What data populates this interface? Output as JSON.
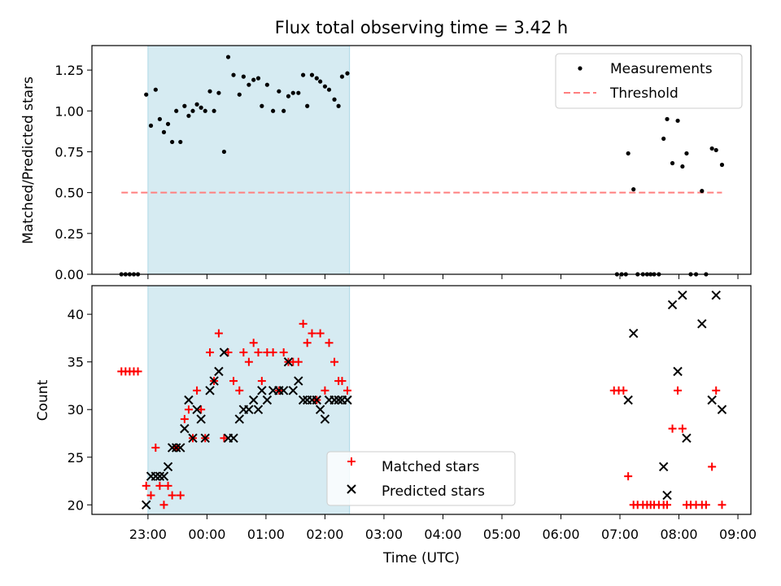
{
  "title": "Flux total observing time = 3.42 h",
  "colors": {
    "band": "#add8e6",
    "matched": "#ff0000",
    "predicted": "#000000",
    "threshold": "#ff7f7f",
    "measurements": "#000000"
  },
  "chart_data": [
    {
      "type": "scatter",
      "panel": "top",
      "ylabel": "Matched/Predicted stars",
      "ylim": [
        0,
        1.4
      ],
      "yticks": [
        0.0,
        0.25,
        0.5,
        0.75,
        1.0,
        1.25
      ],
      "ytick_labels": [
        "0.00",
        "0.25",
        "0.50",
        "0.75",
        "1.00",
        "1.25"
      ],
      "x_unit": "hours relative to 00:00 UTC",
      "xlim": [
        -1.95,
        9.22
      ],
      "xticks": [
        -1,
        0,
        1,
        2,
        3,
        4,
        5,
        6,
        7,
        8,
        9
      ],
      "shaded_interval": [
        "23:00",
        "02:25"
      ],
      "legend": {
        "position": "top-right",
        "entries": [
          "Measurements",
          "Threshold"
        ]
      },
      "threshold": {
        "name": "Threshold",
        "value": 0.5,
        "x_range": [
          -1.45,
          8.73
        ],
        "style": "dashed"
      },
      "series": [
        {
          "name": "Measurements",
          "x": [
            -1.45,
            -1.38,
            -1.31,
            -1.24,
            -1.17,
            -1.03,
            -0.95,
            -0.87,
            -0.8,
            -0.73,
            -0.66,
            -0.59,
            -0.52,
            -0.45,
            -0.38,
            -0.31,
            -0.24,
            -0.17,
            -0.1,
            -0.03,
            0.05,
            0.12,
            0.2,
            0.29,
            0.36,
            0.45,
            0.55,
            0.62,
            0.71,
            0.79,
            0.87,
            0.93,
            1.02,
            1.12,
            1.22,
            1.3,
            1.38,
            1.46,
            1.55,
            1.63,
            1.7,
            1.78,
            1.86,
            1.92,
            2.0,
            2.07,
            2.16,
            2.23,
            2.29,
            2.38,
            6.95,
            7.03,
            7.1,
            7.14,
            7.23,
            7.3,
            7.39,
            7.46,
            7.52,
            7.58,
            7.66,
            7.74,
            7.8,
            7.89,
            7.98,
            8.06,
            8.13,
            8.2,
            8.29,
            8.39,
            8.46,
            8.56,
            8.63,
            8.73
          ],
          "y": [
            0,
            0,
            0,
            0,
            0,
            1.1,
            0.91,
            1.13,
            0.95,
            0.87,
            0.92,
            0.81,
            1.0,
            0.81,
            1.03,
            0.97,
            1.0,
            1.04,
            1.02,
            1.0,
            1.12,
            1.0,
            1.11,
            0.75,
            1.33,
            1.22,
            1.1,
            1.21,
            1.16,
            1.19,
            1.2,
            1.03,
            1.16,
            1.0,
            1.12,
            1.0,
            1.09,
            1.11,
            1.11,
            1.22,
            1.03,
            1.22,
            1.2,
            1.18,
            1.15,
            1.13,
            1.07,
            1.03,
            1.21,
            1.23,
            0,
            0,
            0,
            0.74,
            0.52,
            0,
            0,
            0,
            0,
            0,
            0,
            0.83,
            0.95,
            0.68,
            0.94,
            0.66,
            0.74,
            0,
            0,
            0.51,
            0,
            0.77,
            0.76,
            0.67
          ]
        }
      ]
    },
    {
      "type": "scatter",
      "panel": "bottom",
      "xlabel": "Time (UTC)",
      "ylabel": "Count",
      "ylim": [
        19,
        43
      ],
      "yticks": [
        20,
        25,
        30,
        35,
        40
      ],
      "ytick_labels": [
        "20",
        "25",
        "30",
        "35",
        "40"
      ],
      "xticks": [
        -1,
        0,
        1,
        2,
        3,
        4,
        5,
        6,
        7,
        8,
        9
      ],
      "xtick_labels": [
        "23:00",
        "00:00",
        "01:00",
        "02:00",
        "03:00",
        "04:00",
        "05:00",
        "06:00",
        "07:00",
        "08:00",
        "09:00"
      ],
      "legend": {
        "position": "bottom-center",
        "entries": [
          "Matched stars",
          "Predicted stars"
        ]
      },
      "series": [
        {
          "name": "Matched stars",
          "marker": "plus",
          "x": [
            -1.45,
            -1.38,
            -1.31,
            -1.24,
            -1.17,
            -1.03,
            -0.95,
            -0.87,
            -0.8,
            -0.73,
            -0.66,
            -0.59,
            -0.52,
            -0.45,
            -0.38,
            -0.31,
            -0.24,
            -0.17,
            -0.1,
            -0.03,
            0.05,
            0.12,
            0.2,
            0.29,
            0.36,
            0.45,
            0.55,
            0.62,
            0.71,
            0.79,
            0.87,
            0.93,
            1.02,
            1.12,
            1.22,
            1.3,
            1.38,
            1.46,
            1.55,
            1.63,
            1.7,
            1.78,
            1.86,
            1.92,
            2.0,
            2.07,
            2.16,
            2.23,
            2.29,
            2.38,
            6.9,
            6.98,
            7.06,
            7.14,
            7.23,
            7.3,
            7.39,
            7.46,
            7.52,
            7.58,
            7.66,
            7.74,
            7.8,
            7.89,
            7.98,
            8.06,
            8.13,
            8.2,
            8.29,
            8.39,
            8.46,
            8.56,
            8.63,
            8.73
          ],
          "y": [
            34,
            34,
            34,
            34,
            34,
            22,
            21,
            26,
            22,
            20,
            22,
            21,
            26,
            21,
            29,
            30,
            27,
            32,
            30,
            27,
            36,
            33,
            38,
            27,
            36,
            33,
            32,
            36,
            35,
            37,
            36,
            33,
            36,
            36,
            32,
            36,
            35,
            35,
            35,
            39,
            37,
            38,
            31,
            38,
            32,
            37,
            35,
            33,
            33,
            32,
            32,
            32,
            32,
            23,
            20,
            20,
            20,
            20,
            20,
            20,
            20,
            20,
            20,
            28,
            32,
            28,
            20,
            20,
            20,
            20,
            20,
            24,
            32,
            20
          ]
        },
        {
          "name": "Predicted stars",
          "marker": "x",
          "x": [
            -1.03,
            -0.95,
            -0.87,
            -0.8,
            -0.73,
            -0.66,
            -0.59,
            -0.52,
            -0.45,
            -0.38,
            -0.31,
            -0.24,
            -0.17,
            -0.1,
            -0.03,
            0.05,
            0.12,
            0.2,
            0.29,
            0.36,
            0.45,
            0.55,
            0.62,
            0.71,
            0.79,
            0.87,
            0.93,
            1.02,
            1.12,
            1.22,
            1.3,
            1.38,
            1.46,
            1.55,
            1.63,
            1.7,
            1.78,
            1.86,
            1.92,
            2.0,
            2.07,
            2.16,
            2.23,
            2.29,
            2.38,
            7.14,
            7.23,
            7.74,
            7.8,
            7.89,
            7.98,
            8.06,
            8.13,
            8.39,
            8.56,
            8.63,
            8.73
          ],
          "y": [
            20,
            23,
            23,
            23,
            23,
            24,
            26,
            26,
            26,
            28,
            31,
            27,
            30,
            29,
            27,
            32,
            33,
            34,
            36,
            27,
            27,
            29,
            30,
            30,
            31,
            30,
            32,
            31,
            32,
            32,
            32,
            35,
            32,
            33,
            31,
            31,
            31,
            31,
            30,
            29,
            31,
            31,
            31,
            31,
            31,
            31,
            38,
            24,
            21,
            41,
            34,
            42,
            27,
            39,
            31,
            42,
            30
          ]
        }
      ]
    }
  ]
}
